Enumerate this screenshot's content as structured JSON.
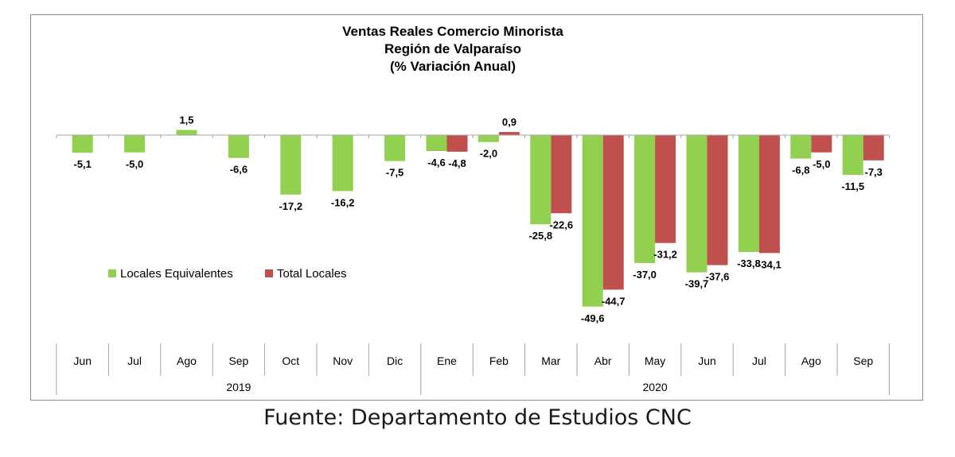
{
  "chart_data": {
    "type": "bar",
    "title": [
      "Ventas Reales Comercio Minorista",
      "Región de Valparaíso",
      "(% Variación Anual)"
    ],
    "categories": [
      "Jun",
      "Jul",
      "Ago",
      "Sep",
      "Oct",
      "Nov",
      "Dic",
      "Ene",
      "Feb",
      "Mar",
      "Abr",
      "May",
      "Jun",
      "Jul",
      "Ago",
      "Sep"
    ],
    "year_groups": [
      {
        "label": "2019",
        "start": 0,
        "end": 6
      },
      {
        "label": "2020",
        "start": 7,
        "end": 15
      }
    ],
    "series": [
      {
        "name": "Locales Equivalentes",
        "color": "#92d050",
        "values": [
          -5.1,
          -5.0,
          1.5,
          -6.6,
          -17.2,
          -16.2,
          -7.5,
          -4.6,
          -2.0,
          -25.8,
          -49.6,
          -37.0,
          -39.7,
          -33.8,
          -6.8,
          -11.5
        ],
        "labels": [
          "-5,1",
          "-5,0",
          "1,5",
          "-6,6",
          "-17,2",
          "-16,2",
          "-7,5",
          "-4,6",
          "-2,0",
          "-25,8",
          "-49,6",
          "-37,0",
          "-39,7",
          "-33,8",
          "-6,8",
          "-11,5"
        ]
      },
      {
        "name": "Total Locales",
        "color": "#c0504d",
        "values": [
          null,
          null,
          null,
          null,
          null,
          null,
          null,
          -4.8,
          0.9,
          -22.6,
          -44.7,
          -31.2,
          -37.6,
          -34.1,
          -5.0,
          -7.3
        ],
        "labels": [
          null,
          null,
          null,
          null,
          null,
          null,
          null,
          "-4,8",
          "0,9",
          "-22,6",
          "-44,7",
          "-31,2",
          "-37,6",
          "-34,1",
          "-5,0",
          "-7,3"
        ]
      }
    ],
    "legend": "left-middle",
    "grid": false,
    "ylim": [
      -50,
      2
    ]
  },
  "source_text": "Fuente: Departamento de Estudios CNC"
}
